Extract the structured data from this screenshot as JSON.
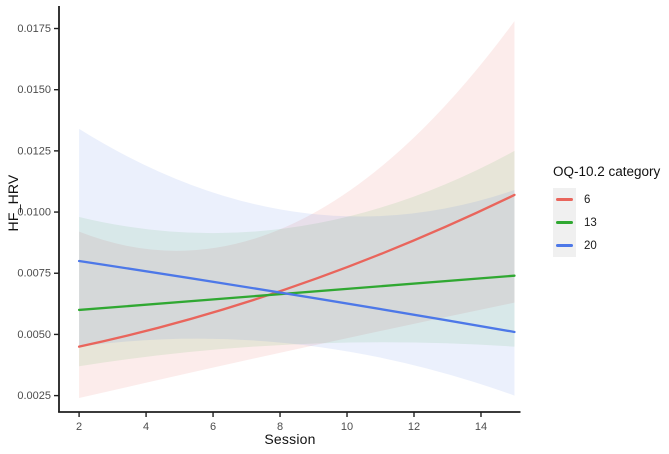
{
  "figure": {
    "background": "#ffffff",
    "axis_color": "#1f1f1f",
    "tick_label_color": "#4d4d4d"
  },
  "chart_data": {
    "type": "line",
    "title": "",
    "xlabel": "Session",
    "ylabel": "HF_HRV",
    "x_ticks": [
      2,
      4,
      6,
      8,
      10,
      12,
      14
    ],
    "y_ticks": [
      0.0025,
      0.005,
      0.0075,
      0.01,
      0.0125,
      0.015,
      0.0175
    ],
    "xlim": [
      1.4,
      15.18
    ],
    "ylim": [
      0.00183,
      0.01842
    ],
    "grid": false,
    "panel_background": "#ffffff",
    "legend": {
      "title": "OQ-10.2 category",
      "position": "right",
      "key_background": "#f0f0f0"
    },
    "series": [
      {
        "name": "6",
        "color": "#e9655c",
        "fill_opacity": 0.12,
        "x": [
          2,
          8.5,
          15
        ],
        "y": [
          0.0045,
          0.007,
          0.0107
        ],
        "ribbon_lower": [
          0.0024,
          0.0044,
          0.0063
        ],
        "ribbon_upper": [
          0.0092,
          0.0096,
          0.0178
        ]
      },
      {
        "name": "13",
        "color": "#30a832",
        "fill_opacity": 0.1,
        "x": [
          2,
          8.5,
          15
        ],
        "y": [
          0.006,
          0.0067,
          0.0074
        ],
        "ribbon_lower": [
          0.0037,
          0.0046,
          0.0045
        ],
        "ribbon_upper": [
          0.0098,
          0.0094,
          0.0125
        ]
      },
      {
        "name": "20",
        "color": "#4d78e8",
        "fill_opacity": 0.11,
        "x": [
          2,
          8.5,
          15
        ],
        "y": [
          0.008,
          0.0066,
          0.0051
        ],
        "ribbon_lower": [
          0.0045,
          0.0046,
          0.0025
        ],
        "ribbon_upper": [
          0.0134,
          0.01,
          0.0109
        ]
      }
    ]
  }
}
